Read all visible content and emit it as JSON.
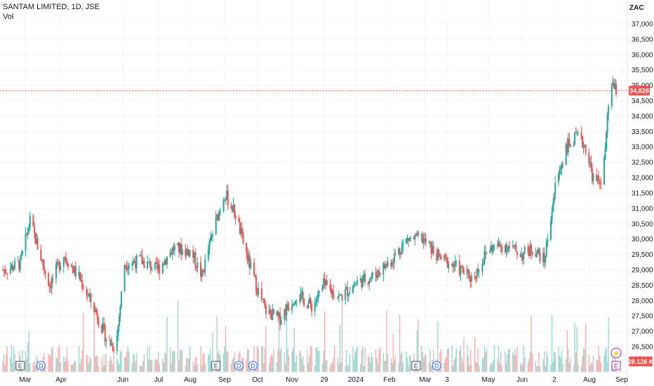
{
  "header": {
    "title": "SANTAM LIMITED, 1D, JSE",
    "volume_label": "Vol",
    "currency": "ZAC"
  },
  "colors": {
    "up": "#26a69a",
    "down": "#ef5350",
    "grid": "#f0f3fa",
    "axis_text": "#131722",
    "price_line": "#ef5350",
    "event_earnings": "#434651",
    "event_dividend": "#2962ff",
    "event_split": "#9c27b0"
  },
  "chart_data": {
    "type": "candlestick",
    "title": "SANTAM LIMITED, 1D, JSE",
    "ylim": [
      26000,
      37250
    ],
    "y_ticks": [
      "37,000",
      "36,500",
      "36,000",
      "35,500",
      "35,000",
      "34,500",
      "34,000",
      "33,500",
      "33,000",
      "32,500",
      "32,000",
      "31,500",
      "31,000",
      "30,500",
      "30,000",
      "29,500",
      "29,000",
      "28,500",
      "28,000",
      "27,500",
      "27,000",
      "26,500"
    ],
    "y_tick_values": [
      37000,
      36500,
      36000,
      35500,
      35000,
      34500,
      34000,
      33500,
      33000,
      32500,
      32000,
      31500,
      31000,
      30500,
      30000,
      29500,
      29000,
      28500,
      28000,
      27500,
      27000,
      26500
    ],
    "x_ticks": [
      "Mar",
      "Apr",
      "Jun",
      "Jul",
      "Aug",
      "Sep",
      "Oct",
      "Nov",
      "29",
      "2024",
      "Feb",
      "Mar",
      "3",
      "May",
      "Jun",
      "2",
      "Aug",
      "Sep"
    ],
    "price_path": {
      "x": [
        "2023-02-15",
        "2023-03-01",
        "2023-03-10",
        "2023-03-20",
        "2023-03-28",
        "2023-04-10",
        "2023-04-25",
        "2023-05-10",
        "2023-05-20",
        "2023-05-28",
        "2023-06-05",
        "2023-06-20",
        "2023-07-05",
        "2023-07-20",
        "2023-08-05",
        "2023-08-15",
        "2023-08-25",
        "2023-09-05",
        "2023-09-15",
        "2023-09-25",
        "2023-10-03",
        "2023-10-12",
        "2023-10-25",
        "2023-11-10",
        "2023-11-25",
        "2023-12-05",
        "2023-12-20",
        "2024-01-05",
        "2024-01-20",
        "2024-02-05",
        "2024-02-20",
        "2024-03-05",
        "2024-03-20",
        "2024-04-05",
        "2024-04-20",
        "2024-05-05",
        "2024-05-20",
        "2024-06-05",
        "2024-06-15",
        "2024-06-25",
        "2024-07-05",
        "2024-07-15",
        "2024-07-25",
        "2024-08-02",
        "2024-08-10",
        "2024-08-18",
        "2024-08-25",
        "2024-08-29"
      ],
      "close": [
        29000,
        29200,
        30600,
        29400,
        28500,
        29500,
        28700,
        27600,
        26700,
        26500,
        29200,
        29300,
        29000,
        29700,
        29600,
        28800,
        30200,
        31500,
        30800,
        29500,
        28600,
        27700,
        27400,
        28200,
        27800,
        28500,
        28100,
        28600,
        28800,
        29300,
        30000,
        30000,
        29400,
        29100,
        28700,
        29700,
        29800,
        29500,
        29700,
        29300,
        31700,
        33000,
        33300,
        33000,
        31800,
        32000,
        35200,
        34828
      ]
    },
    "last_price": "34,828",
    "last_volume": "28.126 K",
    "events": [
      {
        "type": "E",
        "date": "2023-03-01"
      },
      {
        "type": "D",
        "date": "2023-03-20"
      },
      {
        "type": "E",
        "date": "2023-08-28"
      },
      {
        "type": "D",
        "date": "2023-09-18"
      },
      {
        "type": "D",
        "date": "2023-10-01"
      },
      {
        "type": "E",
        "date": "2024-02-28"
      },
      {
        "type": "D",
        "date": "2024-03-18"
      },
      {
        "type": "E",
        "date": "2024-08-30"
      }
    ],
    "split_marker": "⚡"
  }
}
